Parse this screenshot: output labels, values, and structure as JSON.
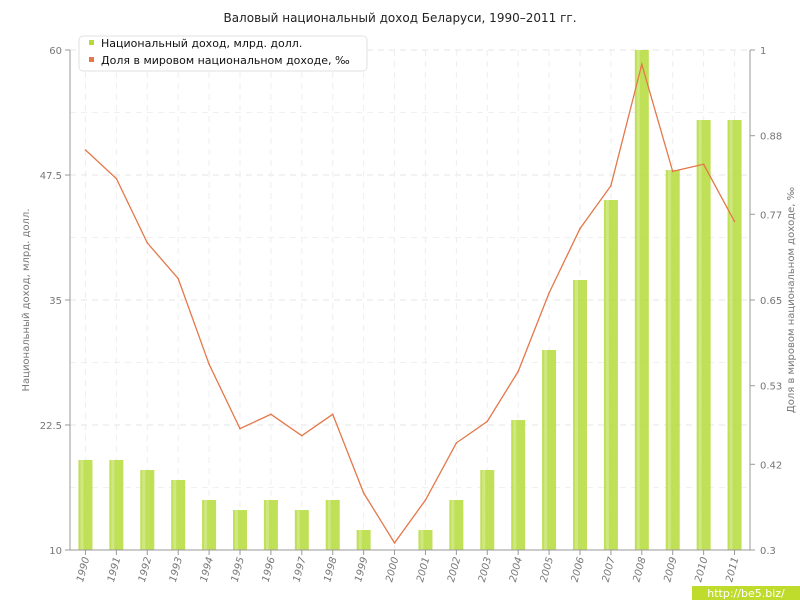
{
  "chart_data": {
    "type": "bar+line",
    "title": "Валовый национальный доход Беларуси, 1990–2011 гг.",
    "ylabel_left": "Национальный доход, млрд. долл.",
    "ylabel_right": "Доля в мировом национальном доходе, ‰",
    "ylim_left": [
      10,
      60
    ],
    "ylim_right": [
      0.3,
      1.0
    ],
    "yticks_left": [
      "10",
      "22.5",
      "35",
      "47.5",
      "60"
    ],
    "yticks_right": [
      "0.3",
      "0.42",
      "0.53",
      "0.65",
      "0.77",
      "0.88",
      "1"
    ],
    "grid": true,
    "legend_position": "top-left",
    "categories": [
      "1990",
      "1991",
      "1992",
      "1993",
      "1994",
      "1995",
      "1996",
      "1997",
      "1998",
      "1999",
      "2000",
      "2001",
      "2002",
      "2003",
      "2004",
      "2005",
      "2006",
      "2007",
      "2008",
      "2009",
      "2010",
      "2011"
    ],
    "series": [
      {
        "name": "Национальный доход, млрд. долл.",
        "kind": "bar",
        "axis": "left",
        "color": "#b5db3a",
        "values": [
          19,
          19,
          18,
          17,
          15,
          14,
          15,
          14,
          15,
          12,
          10,
          12,
          15,
          18,
          23,
          30,
          37,
          45,
          60,
          48,
          53,
          53
        ]
      },
      {
        "name": "Доля в мировом национальном доходе, ‰",
        "kind": "line",
        "axis": "right",
        "color": "#e4784a",
        "values": [
          0.86,
          0.82,
          0.73,
          0.68,
          0.56,
          0.47,
          0.49,
          0.46,
          0.49,
          0.38,
          0.31,
          0.37,
          0.45,
          0.48,
          0.55,
          0.66,
          0.75,
          0.81,
          0.98,
          0.83,
          0.84,
          0.76
        ]
      }
    ]
  },
  "watermark": "http://be5.biz/"
}
